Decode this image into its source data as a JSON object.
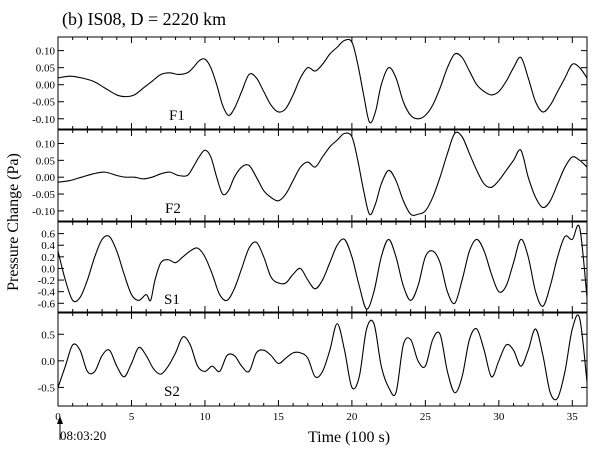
{
  "chart_data": {
    "type": "line",
    "title": "(b) IS08, D = 2220 km",
    "xlabel": "Time (100 s)",
    "ylabel": "Pressure Change (Pa)",
    "start_time": "08:03:20",
    "xlim": [
      0,
      36
    ],
    "xticks": [
      0,
      5,
      10,
      15,
      20,
      25,
      30,
      35
    ],
    "line_color": "#000000",
    "grid": false,
    "panels": [
      {
        "name": "F1",
        "ylim": [
          -0.13,
          0.14
        ],
        "yticks": [
          -0.1,
          -0.05,
          0.0,
          0.05,
          0.1
        ],
        "yticklabels": [
          "-0.10",
          "-0.05",
          "0.00",
          "0.05",
          "0.10"
        ],
        "x": [
          0,
          0.8,
          1.6,
          2.4,
          3.2,
          4.0,
          4.6,
          5.2,
          5.8,
          6.4,
          7.0,
          7.6,
          8.2,
          8.8,
          9.2,
          9.6,
          10.0,
          10.4,
          10.8,
          11.2,
          11.6,
          12.0,
          12.5,
          13.0,
          13.5,
          14.0,
          14.5,
          15.0,
          15.5,
          16.0,
          16.5,
          17.0,
          17.5,
          18.0,
          18.5,
          19.0,
          19.5,
          20.0,
          20.4,
          20.8,
          21.2,
          21.6,
          22.0,
          22.5,
          23.0,
          23.5,
          24.0,
          24.5,
          25.0,
          25.5,
          26.0,
          26.5,
          27.0,
          27.5,
          28.0,
          28.5,
          29.0,
          29.5,
          30.0,
          30.5,
          31.0,
          31.5,
          32.0,
          32.5,
          33.0,
          33.5,
          34.0,
          34.5,
          35.0,
          35.5,
          36.0
        ],
        "y": [
          0.02,
          0.025,
          0.02,
          0.01,
          -0.01,
          -0.03,
          -0.035,
          -0.03,
          -0.01,
          0.01,
          0.03,
          0.035,
          0.03,
          0.035,
          0.05,
          0.07,
          0.075,
          0.05,
          0.0,
          -0.06,
          -0.09,
          -0.07,
          -0.02,
          0.03,
          0.02,
          -0.02,
          -0.06,
          -0.08,
          -0.07,
          -0.03,
          0.02,
          0.05,
          0.04,
          0.06,
          0.09,
          0.11,
          0.13,
          0.125,
          0.06,
          -0.03,
          -0.11,
          -0.08,
          0.0,
          0.05,
          0.02,
          -0.05,
          -0.09,
          -0.1,
          -0.09,
          -0.06,
          -0.01,
          0.05,
          0.09,
          0.08,
          0.04,
          0.0,
          -0.02,
          -0.03,
          -0.02,
          0.01,
          0.05,
          0.08,
          0.02,
          -0.05,
          -0.08,
          -0.06,
          -0.02,
          0.02,
          0.06,
          0.05,
          0.02
        ]
      },
      {
        "name": "F2",
        "ylim": [
          -0.13,
          0.14
        ],
        "yticks": [
          -0.1,
          -0.05,
          0.0,
          0.05,
          0.1
        ],
        "yticklabels": [
          "-0.10",
          "-0.05",
          "0.00",
          "0.05",
          "0.10"
        ],
        "x": [
          0,
          0.8,
          1.6,
          2.4,
          3.2,
          4.0,
          4.6,
          5.2,
          5.8,
          6.4,
          7.0,
          7.6,
          8.2,
          8.8,
          9.2,
          9.6,
          10.0,
          10.4,
          10.8,
          11.2,
          11.6,
          12.0,
          12.5,
          13.0,
          13.5,
          14.0,
          14.5,
          15.0,
          15.5,
          16.0,
          16.5,
          17.0,
          17.5,
          18.0,
          18.5,
          19.0,
          19.5,
          20.0,
          20.4,
          20.8,
          21.2,
          21.6,
          22.0,
          22.5,
          23.0,
          23.5,
          24.0,
          24.5,
          25.0,
          25.5,
          26.0,
          26.5,
          27.0,
          27.5,
          28.0,
          28.5,
          29.0,
          29.5,
          30.0,
          30.5,
          31.0,
          31.5,
          32.0,
          32.5,
          33.0,
          33.5,
          34.0,
          34.5,
          35.0,
          35.5,
          36.0
        ],
        "y": [
          -0.015,
          -0.01,
          0.0,
          0.01,
          0.015,
          0.005,
          0.0,
          0.0,
          -0.005,
          0.0,
          0.01,
          0.015,
          0.005,
          0.005,
          0.03,
          0.06,
          0.08,
          0.06,
          0.0,
          -0.05,
          -0.04,
          0.0,
          0.03,
          0.035,
          0.0,
          -0.04,
          -0.06,
          -0.07,
          -0.05,
          -0.01,
          0.03,
          0.045,
          0.03,
          0.06,
          0.09,
          0.11,
          0.13,
          0.12,
          0.05,
          -0.04,
          -0.11,
          -0.08,
          -0.02,
          0.02,
          -0.01,
          -0.07,
          -0.11,
          -0.11,
          -0.1,
          -0.06,
          0.0,
          0.07,
          0.13,
          0.12,
          0.07,
          0.02,
          -0.02,
          -0.03,
          -0.01,
          0.02,
          0.05,
          0.08,
          0.0,
          -0.06,
          -0.09,
          -0.07,
          -0.02,
          0.03,
          0.06,
          0.05,
          0.03
        ]
      },
      {
        "name": "S1",
        "ylim": [
          -0.75,
          0.8
        ],
        "yticks": [
          -0.6,
          -0.4,
          -0.2,
          0.0,
          0.2,
          0.4,
          0.6
        ],
        "yticklabels": [
          "-0.6",
          "-0.4",
          "-0.2",
          "0.0",
          "0.2",
          "0.4",
          "0.6"
        ],
        "x": [
          0,
          0.5,
          1.0,
          1.5,
          2.0,
          2.5,
          3.0,
          3.5,
          4.0,
          4.5,
          5.0,
          5.5,
          6.0,
          6.3,
          6.6,
          7.0,
          7.5,
          8.0,
          8.5,
          9.0,
          9.5,
          10.0,
          10.5,
          11.0,
          11.5,
          12.0,
          12.5,
          13.0,
          13.5,
          14.0,
          14.5,
          15.0,
          15.5,
          16.0,
          16.5,
          17.0,
          17.5,
          18.0,
          18.5,
          19.0,
          19.5,
          20.0,
          20.5,
          21.0,
          21.5,
          22.0,
          22.5,
          23.0,
          23.5,
          24.0,
          24.5,
          25.0,
          25.5,
          26.0,
          26.5,
          27.0,
          27.5,
          28.0,
          28.5,
          29.0,
          29.5,
          30.0,
          30.5,
          31.0,
          31.5,
          32.0,
          32.5,
          33.0,
          33.5,
          34.0,
          34.5,
          35.0,
          35.5,
          36.0
        ],
        "y": [
          0.3,
          -0.2,
          -0.55,
          -0.5,
          -0.2,
          0.2,
          0.5,
          0.55,
          0.3,
          -0.1,
          -0.45,
          -0.55,
          -0.45,
          -0.55,
          -0.2,
          0.1,
          0.15,
          0.1,
          0.2,
          0.3,
          0.35,
          0.2,
          -0.1,
          -0.45,
          -0.55,
          -0.35,
          0.0,
          0.35,
          0.45,
          0.2,
          -0.15,
          -0.25,
          -0.25,
          -0.1,
          0.0,
          -0.2,
          -0.35,
          -0.2,
          0.1,
          0.4,
          0.5,
          0.2,
          -0.3,
          -0.7,
          -0.4,
          0.2,
          0.5,
          0.2,
          -0.3,
          -0.55,
          -0.3,
          0.2,
          0.3,
          0.1,
          -0.4,
          -0.6,
          -0.2,
          0.3,
          0.5,
          0.3,
          -0.1,
          -0.4,
          -0.3,
          0.1,
          0.5,
          0.2,
          -0.4,
          -0.65,
          -0.3,
          0.2,
          0.55,
          0.5,
          0.7,
          -0.5
        ]
      },
      {
        "name": "S2",
        "ylim": [
          -0.85,
          0.9
        ],
        "yticks": [
          -0.5,
          0.0,
          0.5
        ],
        "yticklabels": [
          "-0.5",
          "0.0",
          "0.5"
        ],
        "x": [
          0,
          0.5,
          1.0,
          1.5,
          2.0,
          2.5,
          3.0,
          3.5,
          4.0,
          4.5,
          5.0,
          5.5,
          6.0,
          6.5,
          7.0,
          7.5,
          8.0,
          8.5,
          9.0,
          9.5,
          10.0,
          10.5,
          11.0,
          11.5,
          12.0,
          12.5,
          13.0,
          13.5,
          14.0,
          14.5,
          15.0,
          15.5,
          16.0,
          16.5,
          17.0,
          17.5,
          18.0,
          18.5,
          19.0,
          19.5,
          20.0,
          20.5,
          21.0,
          21.5,
          22.0,
          22.5,
          23.0,
          23.5,
          24.0,
          24.5,
          25.0,
          25.5,
          26.0,
          26.5,
          27.0,
          27.5,
          28.0,
          28.5,
          29.0,
          29.5,
          30.0,
          30.5,
          31.0,
          31.5,
          32.0,
          32.5,
          33.0,
          33.5,
          34.0,
          34.5,
          35.0,
          35.5,
          36.0
        ],
        "y": [
          -0.5,
          -0.1,
          0.3,
          0.2,
          -0.2,
          -0.2,
          0.1,
          0.2,
          -0.1,
          -0.3,
          -0.05,
          0.25,
          0.1,
          -0.15,
          -0.25,
          -0.1,
          0.15,
          0.45,
          0.3,
          -0.1,
          -0.2,
          -0.1,
          -0.2,
          0.1,
          0.1,
          -0.1,
          -0.2,
          0.15,
          0.2,
          0.1,
          -0.05,
          0.05,
          0.15,
          0.15,
          0.05,
          -0.3,
          -0.2,
          0.2,
          0.7,
          0.2,
          -0.5,
          -0.3,
          0.6,
          0.7,
          -0.1,
          -0.5,
          -0.6,
          0.3,
          0.4,
          0.0,
          -0.1,
          0.4,
          0.5,
          -0.2,
          -0.6,
          -0.3,
          0.4,
          0.6,
          0.2,
          -0.3,
          0.0,
          0.3,
          0.2,
          -0.1,
          0.2,
          0.6,
          0.1,
          -0.6,
          -0.7,
          -0.2,
          0.6,
          0.8,
          -0.4
        ]
      }
    ]
  }
}
